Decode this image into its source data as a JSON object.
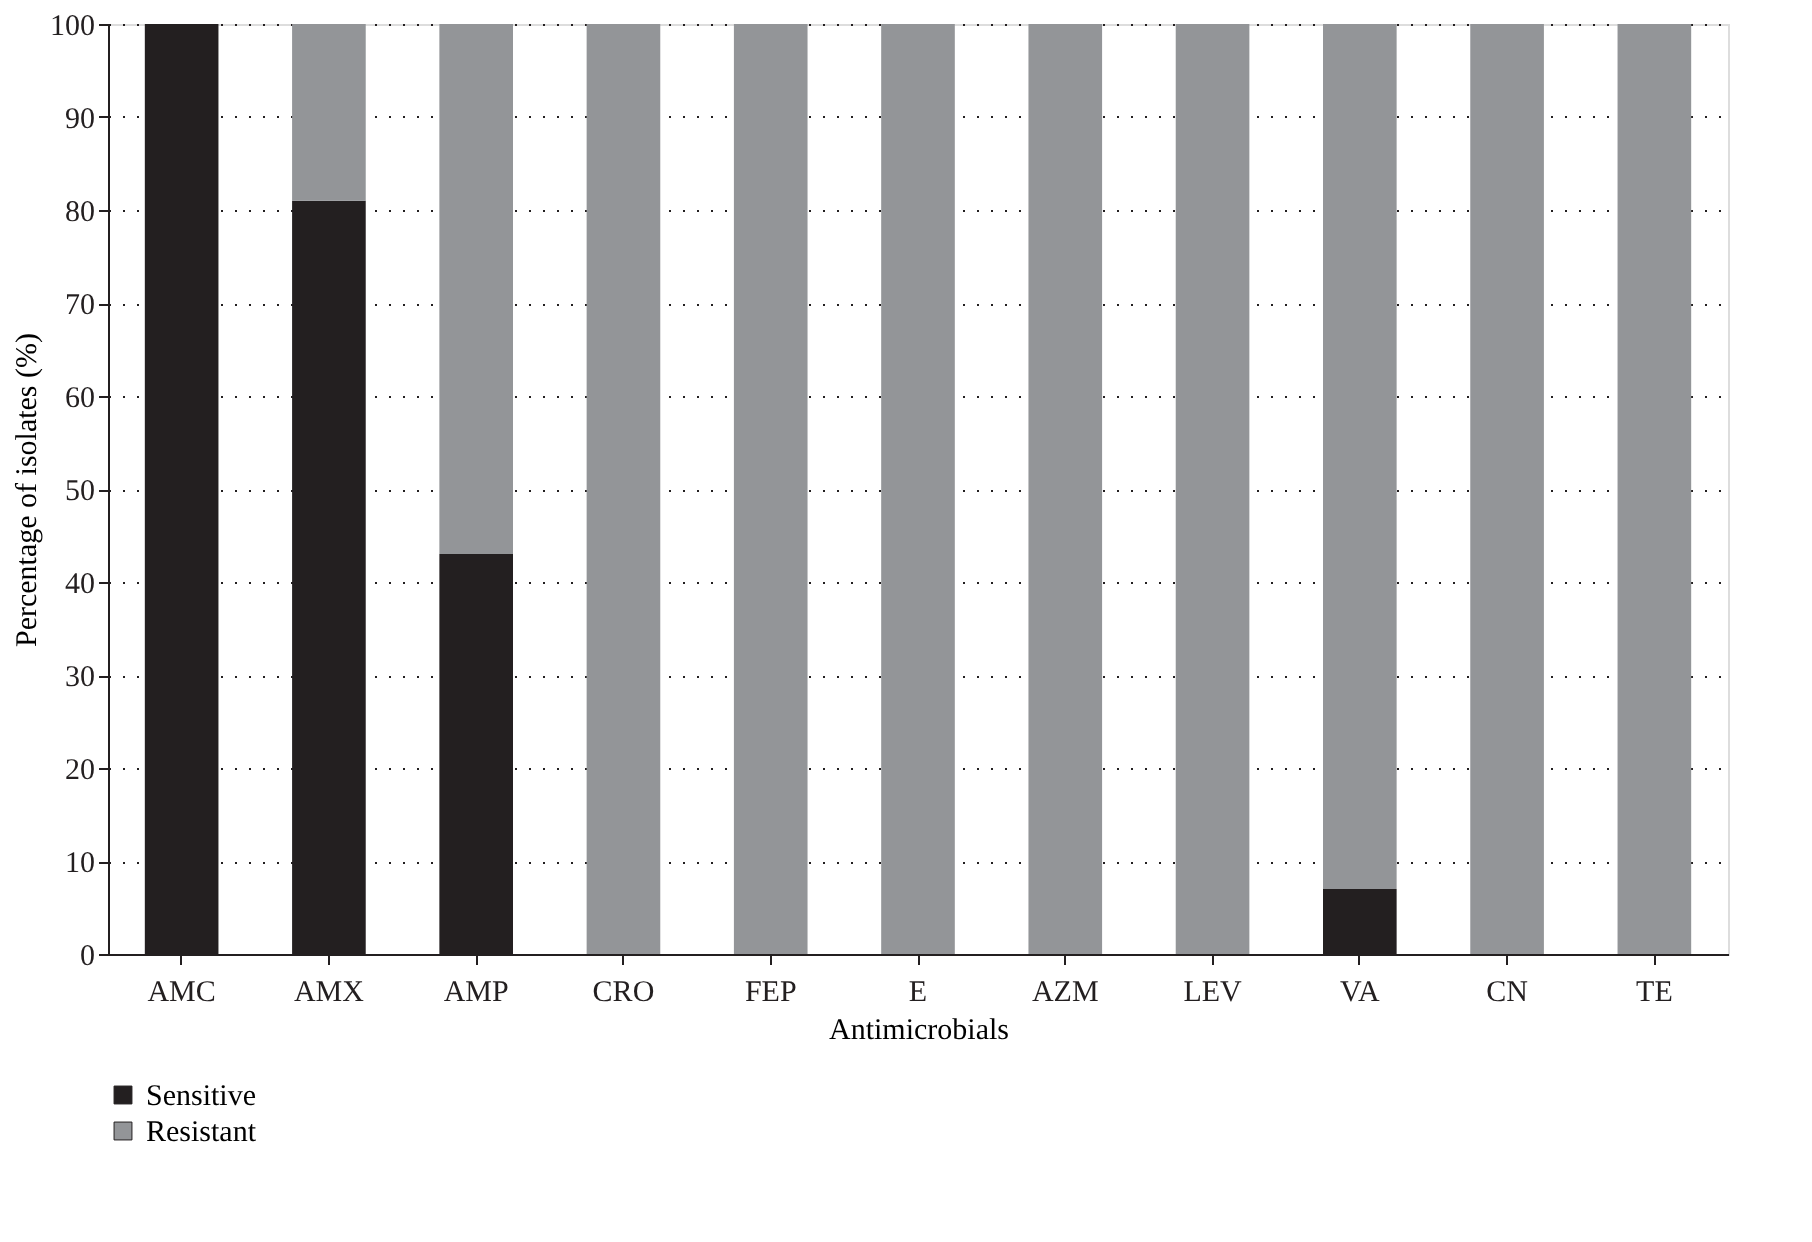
{
  "chart_data": {
    "type": "bar",
    "stacked": true,
    "xlabel": "Antimicrobials",
    "ylabel": "Percentage of isolates (%)",
    "categories": [
      "AMC",
      "AMX",
      "AMP",
      "CRO",
      "FEP",
      "E",
      "AZM",
      "LEV",
      "VA",
      "CN",
      "TE"
    ],
    "series": [
      {
        "name": "Sensitive",
        "color": "#231f20",
        "values": [
          100,
          81,
          43,
          0,
          0,
          0,
          0,
          0,
          7,
          0,
          0
        ]
      },
      {
        "name": "Resistant",
        "color": "#939598",
        "values": [
          0,
          19,
          57,
          100,
          100,
          100,
          100,
          100,
          93,
          100,
          100
        ]
      }
    ],
    "ylim": [
      0,
      100
    ],
    "yticks": [
      0,
      10,
      20,
      30,
      40,
      50,
      60,
      70,
      80,
      90,
      100
    ],
    "grid": "y",
    "legend": "bottom left"
  }
}
